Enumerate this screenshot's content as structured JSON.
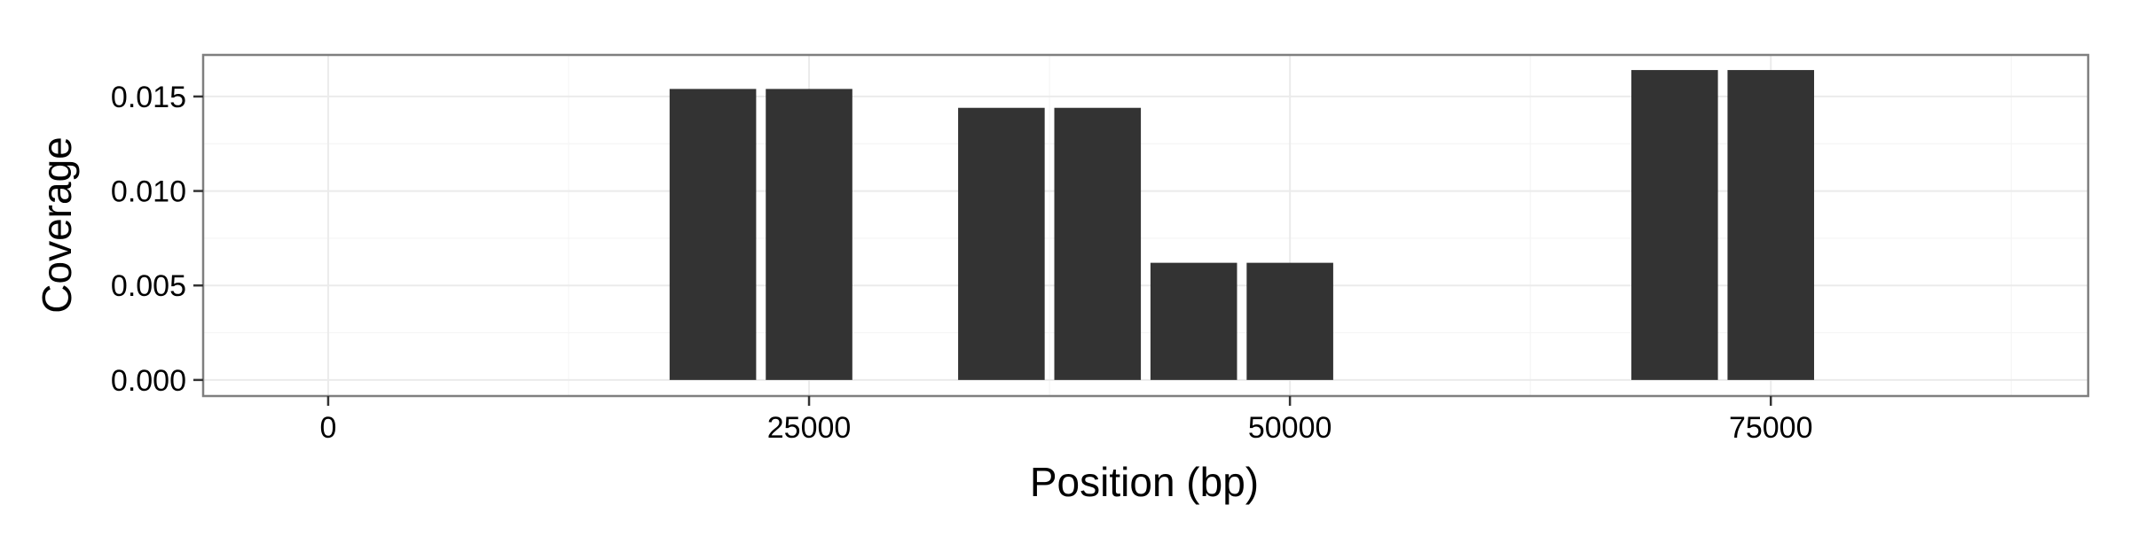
{
  "chart_data": {
    "type": "bar",
    "title": "",
    "xlabel": "Position (bp)",
    "ylabel": "Coverage",
    "xlim": [
      -6500,
      91500
    ],
    "ylim": [
      -0.00085,
      0.0172
    ],
    "xticks": [
      0,
      25000,
      50000,
      75000
    ],
    "xtick_labels": [
      "0",
      "25000",
      "50000",
      "75000"
    ],
    "yticks": [
      0.0,
      0.005,
      0.01,
      0.015
    ],
    "ytick_labels": [
      "0.000",
      "0.005",
      "0.010",
      "0.015"
    ],
    "grid": true,
    "legend": "none",
    "bar_width": 4500,
    "bars": [
      {
        "x": 20000,
        "value": 0.0154
      },
      {
        "x": 25000,
        "value": 0.0154
      },
      {
        "x": 35000,
        "value": 0.0144
      },
      {
        "x": 40000,
        "value": 0.0144
      },
      {
        "x": 45000,
        "value": 0.0062
      },
      {
        "x": 50000,
        "value": 0.0062
      },
      {
        "x": 70000,
        "value": 0.0164
      },
      {
        "x": 75000,
        "value": 0.0164
      }
    ],
    "colors": {
      "bar": "#333333",
      "panel_background": "#ffffff",
      "panel_border": "#7f7f7f",
      "grid_major": "#ebebeb",
      "grid_minor": "#f5f5f5",
      "tick": "#333333"
    }
  }
}
